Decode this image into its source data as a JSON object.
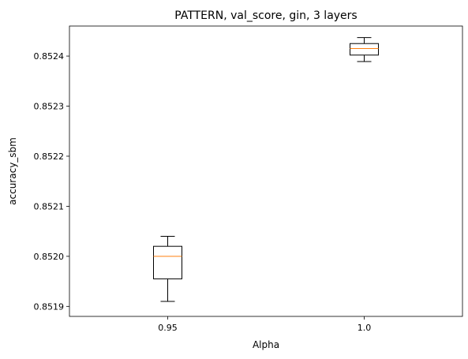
{
  "chart_data": {
    "type": "box",
    "title": "PATTERN, val_score, gin, 3 layers",
    "xlabel": "Alpha",
    "ylabel": "accuracy_sbm",
    "categories": [
      "0.95",
      "1.0"
    ],
    "boxes": [
      {
        "category": "0.95",
        "whisker_low": 0.85191,
        "q1": 0.851955,
        "median": 0.852,
        "q3": 0.85202,
        "whisker_high": 0.85204
      },
      {
        "category": "1.0",
        "whisker_low": 0.852389,
        "q1": 0.852402,
        "median": 0.852415,
        "q3": 0.852425,
        "whisker_high": 0.852437
      }
    ],
    "ylim": [
      0.85188,
      0.85246
    ],
    "yticks": [
      0.8519,
      0.852,
      0.8521,
      0.8522,
      0.8523,
      0.8524
    ],
    "ytick_labels": [
      "0.8519",
      "0.8520",
      "0.8521",
      "0.8522",
      "0.8523",
      "0.8524"
    ],
    "grid": false,
    "colors": {
      "box": "#000000",
      "median": "#ff7f0e"
    }
  }
}
